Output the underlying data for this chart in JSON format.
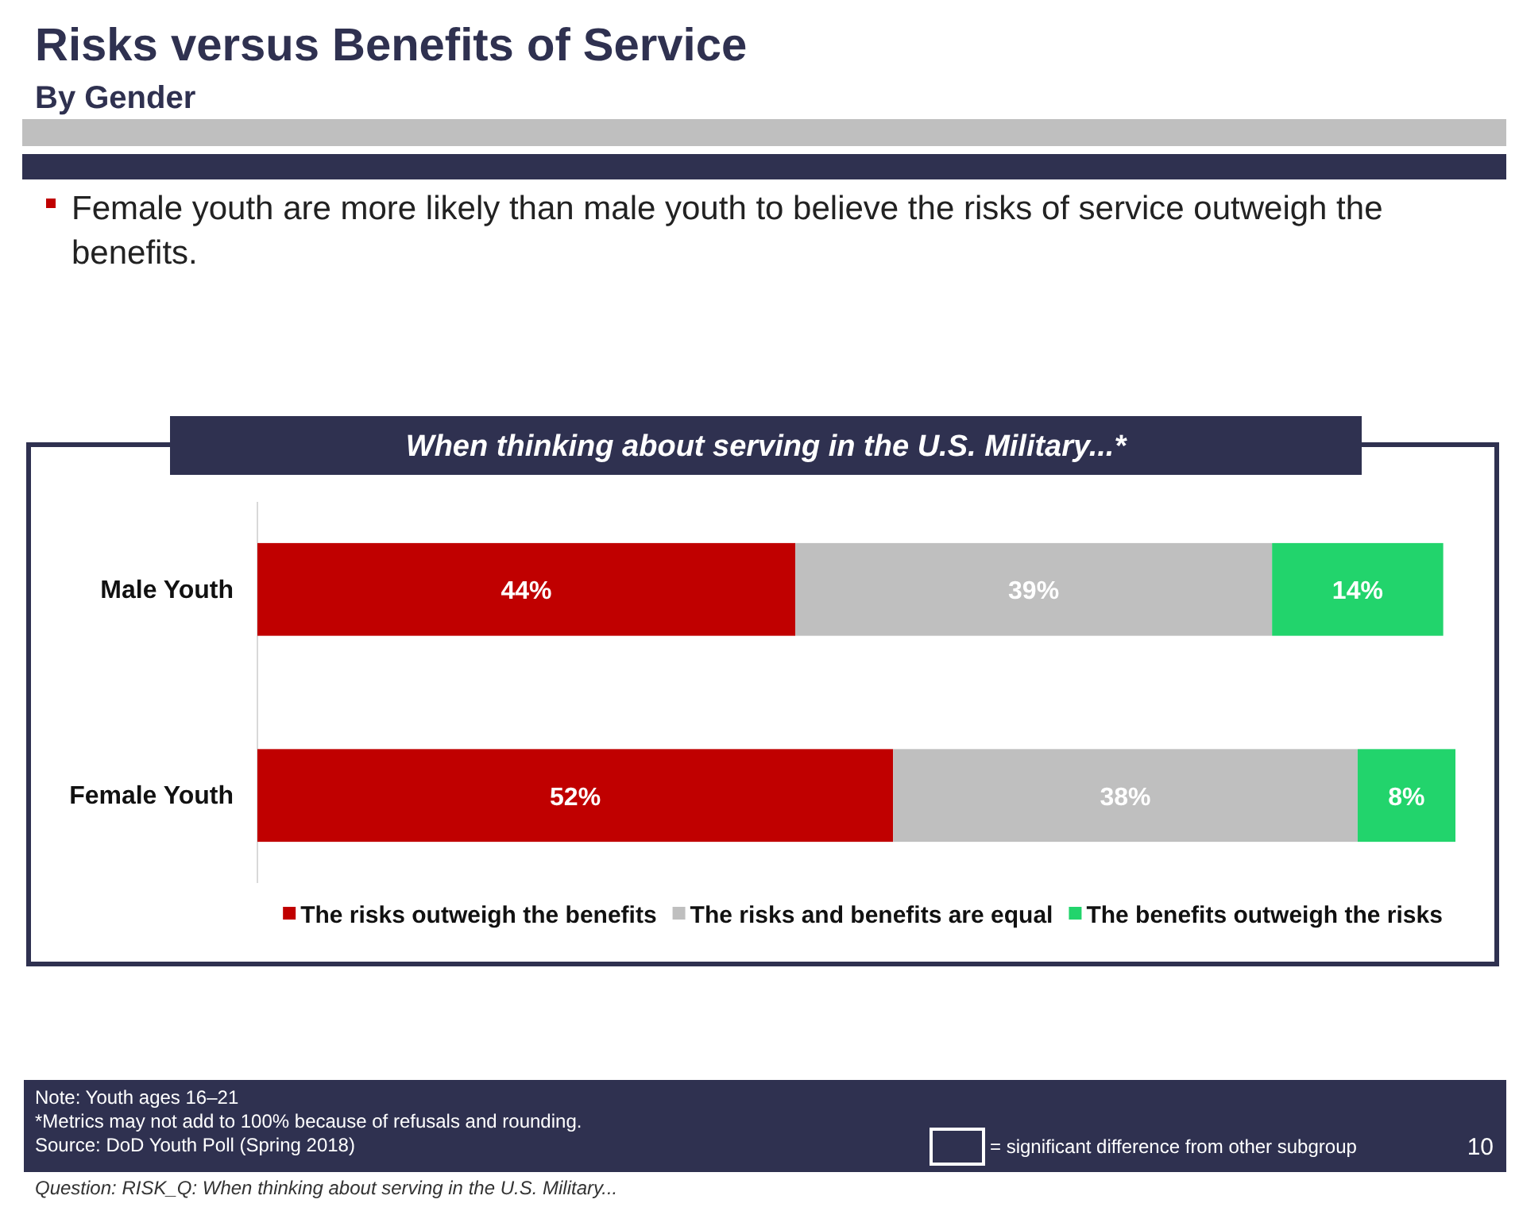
{
  "chart_data": {
    "type": "bar",
    "orientation": "horizontal",
    "stacked": true,
    "title": "Risks versus Benefits of Service",
    "subtitle": "By Gender",
    "categories": [
      "Male Youth",
      "Female Youth"
    ],
    "series": [
      {
        "name": "The risks outweigh the benefits",
        "color": "#c00000",
        "values": [
          44,
          52
        ],
        "value_labels": [
          "44%",
          "52%"
        ]
      },
      {
        "name": "The risks and benefits are equal",
        "color": "#bfbfbf",
        "values": [
          39,
          38
        ],
        "value_labels": [
          "39%",
          "38%"
        ]
      },
      {
        "name": "The benefits outweigh the risks",
        "color": "#22d46c",
        "values": [
          14,
          8
        ],
        "value_labels": [
          "14%",
          "8%"
        ]
      }
    ],
    "legend": "bottom",
    "annotations": [
      "Female youth are more likely than male youth to believe the risks of service outweigh the benefits.",
      "When thinking about serving in the U.S. Military...*",
      "Note:  Youth ages 16–21",
      "*Metrics may not add to 100% because of refusals and rounding.",
      "Source:  DoD Youth Poll (Spring 2018)",
      "= significant difference from other subgroup",
      "10",
      "Question:  RISK_Q:  When thinking about serving in the U.S. Military..."
    ]
  }
}
